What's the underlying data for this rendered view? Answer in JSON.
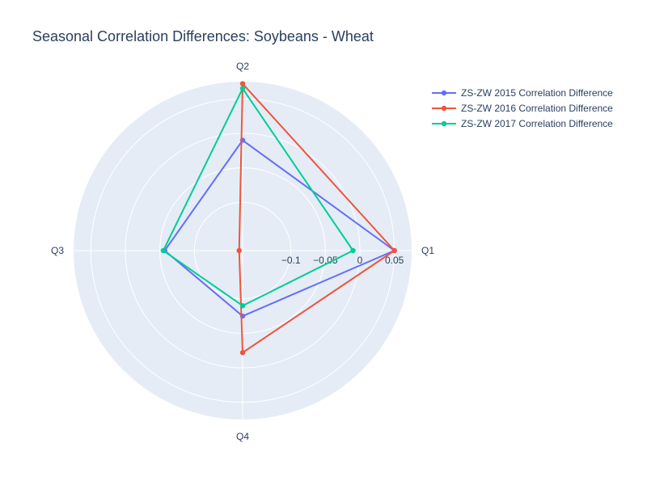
{
  "chart_data": {
    "type": "line",
    "subtype": "polar",
    "title": "Seasonal Correlation Differences: Soybeans - Wheat",
    "theta_categories": [
      "Q1",
      "Q2",
      "Q3",
      "Q4"
    ],
    "radial_range": [
      -0.17,
      0.075
    ],
    "radial_ticks": [
      -0.1,
      -0.05,
      0,
      0.05
    ],
    "radial_tick_labels": [
      "−0.1",
      "−0.05",
      "0",
      "0.05"
    ],
    "grid": true,
    "legend_position": "top-right",
    "series": [
      {
        "name": "ZS-ZW 2015 Correlation Difference",
        "color": "#636efa",
        "values": [
          0.05,
          -0.01,
          -0.057,
          -0.075
        ]
      },
      {
        "name": "ZS-ZW 2016 Correlation Difference",
        "color": "#ef553b",
        "values": [
          0.05,
          0.072,
          -0.165,
          -0.022
        ]
      },
      {
        "name": "ZS-ZW 2017 Correlation Difference",
        "color": "#00cc96",
        "values": [
          -0.01,
          0.065,
          -0.055,
          -0.09
        ]
      }
    ]
  }
}
